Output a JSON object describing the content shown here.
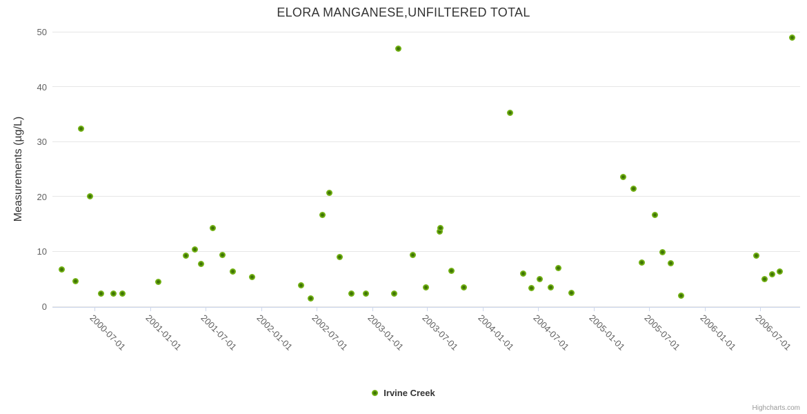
{
  "chart_data": {
    "type": "scatter",
    "title": "ELORA MANGANESE,UNFILTERED TOTAL",
    "xlabel": "",
    "ylabel": "Measurements (µg/L)",
    "ylim": [
      0,
      50
    ],
    "yticks": [
      0,
      10,
      20,
      30,
      40,
      50
    ],
    "x_axis_type": "datetime",
    "x_range": [
      "2000-02-13",
      "2006-11-10"
    ],
    "x_tick_labels": [
      "2000-07-01",
      "2001-01-01",
      "2001-07-01",
      "2002-01-01",
      "2002-07-01",
      "2003-01-01",
      "2003-07-01",
      "2004-01-01",
      "2004-07-01",
      "2005-01-01",
      "2005-07-01",
      "2006-01-01",
      "2006-07-01"
    ],
    "grid": true,
    "legend_position": "bottom-center",
    "series": [
      {
        "name": "Irvine Creek",
        "color": "#72b114",
        "points": [
          [
            "2000-03-14",
            6.7
          ],
          [
            "2000-04-28",
            4.6
          ],
          [
            "2000-05-17",
            32.3
          ],
          [
            "2000-06-15",
            20.1
          ],
          [
            "2000-07-21",
            2.3
          ],
          [
            "2000-08-31",
            2.3
          ],
          [
            "2000-09-30",
            2.3
          ],
          [
            "2001-01-26",
            4.4
          ],
          [
            "2001-04-27",
            9.2
          ],
          [
            "2001-05-26",
            10.4
          ],
          [
            "2001-06-16",
            7.7
          ],
          [
            "2001-07-24",
            14.3
          ],
          [
            "2001-08-25",
            9.3
          ],
          [
            "2001-09-28",
            6.4
          ],
          [
            "2001-12-01",
            5.4
          ],
          [
            "2002-05-11",
            3.8
          ],
          [
            "2002-06-12",
            1.5
          ],
          [
            "2002-07-21",
            16.6
          ],
          [
            "2002-08-14",
            20.7
          ],
          [
            "2002-09-17",
            9.0
          ],
          [
            "2002-10-24",
            2.3
          ],
          [
            "2002-12-11",
            2.3
          ],
          [
            "2003-03-14",
            2.3
          ],
          [
            "2003-03-27",
            46.9
          ],
          [
            "2003-05-14",
            9.4
          ],
          [
            "2003-06-26",
            3.4
          ],
          [
            "2003-08-11",
            13.6
          ],
          [
            "2003-08-13",
            14.2
          ],
          [
            "2003-09-20",
            6.5
          ],
          [
            "2003-10-29",
            3.5
          ],
          [
            "2004-03-31",
            35.2
          ],
          [
            "2004-05-11",
            6.0
          ],
          [
            "2004-06-08",
            3.3
          ],
          [
            "2004-07-05",
            5.0
          ],
          [
            "2004-08-10",
            3.5
          ],
          [
            "2004-09-06",
            7.0
          ],
          [
            "2004-10-19",
            2.5
          ],
          [
            "2005-04-06",
            23.5
          ],
          [
            "2005-05-10",
            21.4
          ],
          [
            "2005-06-06",
            8.0
          ],
          [
            "2005-07-19",
            16.7
          ],
          [
            "2005-08-15",
            9.8
          ],
          [
            "2005-09-11",
            7.9
          ],
          [
            "2005-10-15",
            2.0
          ],
          [
            "2006-06-18",
            9.2
          ],
          [
            "2006-07-15",
            5.0
          ],
          [
            "2006-08-09",
            5.8
          ],
          [
            "2006-09-03",
            6.3
          ],
          [
            "2006-10-16",
            48.9
          ]
        ]
      }
    ]
  },
  "legend": {
    "label": "Irvine Creek"
  },
  "credits": {
    "label": "Highcharts.com"
  },
  "colors": {
    "marker_outer": "#72b114",
    "marker_inner": "#3f7405",
    "gridline": "#e6e6e6",
    "axis_line": "#ccd6eb",
    "tick_label": "#606060",
    "title_text": "#333333"
  }
}
